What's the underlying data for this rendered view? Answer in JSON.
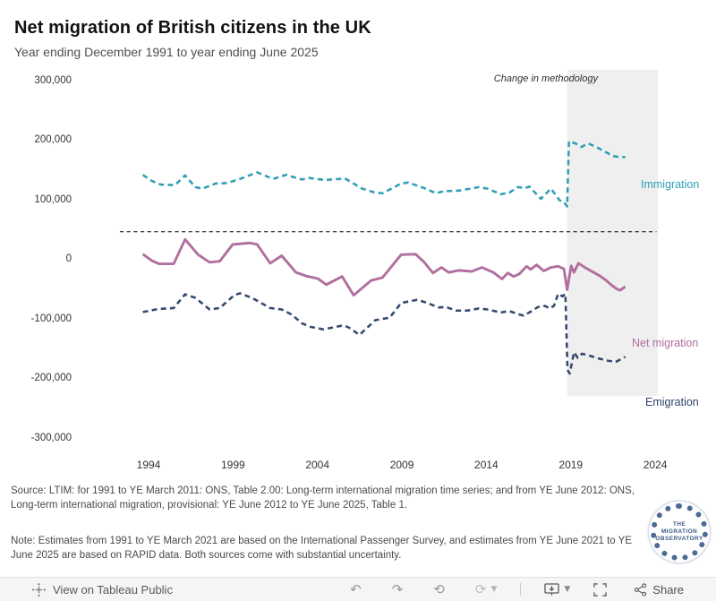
{
  "header": {
    "title": "Net migration of British citizens in the UK",
    "subtitle": "Year ending December 1991 to year ending June 2025"
  },
  "chart_data": {
    "type": "line",
    "title": "Net migration of British citizens in the UK",
    "subtitle": "Year ending December 1991 to year ending June 2025",
    "annotation": "Change in methodology",
    "grid": false,
    "x_range_years": [
      1991.96,
      2025.46
    ],
    "ylim": [
      -300000,
      300000
    ],
    "y_ticks": [
      300000,
      200000,
      100000,
      0,
      -100000,
      -200000,
      -300000
    ],
    "y_tick_labels": [
      "300,000",
      "200,000",
      "100,000",
      "0",
      "-100,000",
      "-200,000",
      "-300,000"
    ],
    "x_ticks": [
      1994,
      1999,
      2004,
      2009,
      2014,
      2019,
      2024
    ],
    "methodology_change_start_year": 2021.4,
    "shaded_region_color": "#efefef",
    "zero_line": {
      "value": 0,
      "style": "dashed",
      "color": "#000000"
    },
    "series": [
      {
        "name": "Immigration",
        "color": "#2E9FB7",
        "style": "dashed",
        "points": [
          [
            1991.96,
            112000
          ],
          [
            1992.6,
            100000
          ],
          [
            1993.2,
            93000
          ],
          [
            1994.2,
            92000
          ],
          [
            1994.9,
            111000
          ],
          [
            1995.6,
            88000
          ],
          [
            1996.1,
            85000
          ],
          [
            1997.0,
            95000
          ],
          [
            1997.8,
            96000
          ],
          [
            1998.6,
            103000
          ],
          [
            1999.9,
            117000
          ],
          [
            2001.0,
            104000
          ],
          [
            2001.9,
            112000
          ],
          [
            2003.0,
            103000
          ],
          [
            2003.5,
            106000
          ],
          [
            2004.6,
            102000
          ],
          [
            2006.0,
            105000
          ],
          [
            2007.2,
            85000
          ],
          [
            2008.1,
            77000
          ],
          [
            2008.6,
            76000
          ],
          [
            2009.9,
            95000
          ],
          [
            2010.4,
            97000
          ],
          [
            2011.6,
            85000
          ],
          [
            2012.3,
            76000
          ],
          [
            2012.9,
            80000
          ],
          [
            2013.9,
            81000
          ],
          [
            2015.3,
            88000
          ],
          [
            2015.9,
            85000
          ],
          [
            2016.8,
            74000
          ],
          [
            2017.4,
            77000
          ],
          [
            2018.0,
            88000
          ],
          [
            2018.5,
            86000
          ],
          [
            2018.8,
            89000
          ],
          [
            2019.6,
            65000
          ],
          [
            2020.3,
            85000
          ],
          [
            2020.9,
            62000
          ],
          [
            2021.2,
            59000
          ],
          [
            2021.42,
            50000
          ],
          [
            2021.55,
            178000
          ],
          [
            2022.0,
            174000
          ],
          [
            2022.4,
            167000
          ],
          [
            2022.9,
            174000
          ],
          [
            2023.5,
            166000
          ],
          [
            2024.1,
            157000
          ],
          [
            2024.6,
            149000
          ],
          [
            2025.1,
            147000
          ],
          [
            2025.46,
            147000
          ]
        ]
      },
      {
        "name": "Net migration",
        "color": "#B06F9E",
        "style": "solid",
        "points": [
          [
            1991.96,
            -44000
          ],
          [
            1992.6,
            -57000
          ],
          [
            1993.1,
            -63000
          ],
          [
            1994.1,
            -63000
          ],
          [
            1994.9,
            -15000
          ],
          [
            1995.8,
            -45000
          ],
          [
            1996.6,
            -60000
          ],
          [
            1997.3,
            -58000
          ],
          [
            1998.2,
            -25000
          ],
          [
            1999.4,
            -22000
          ],
          [
            1999.9,
            -25000
          ],
          [
            2000.8,
            -62000
          ],
          [
            2001.6,
            -47000
          ],
          [
            2002.6,
            -80000
          ],
          [
            2003.3,
            -87000
          ],
          [
            2004.1,
            -92000
          ],
          [
            2004.7,
            -104000
          ],
          [
            2005.8,
            -88000
          ],
          [
            2006.6,
            -125000
          ],
          [
            2007.8,
            -96000
          ],
          [
            2008.6,
            -90000
          ],
          [
            2009.9,
            -45000
          ],
          [
            2010.9,
            -44000
          ],
          [
            2011.5,
            -60000
          ],
          [
            2012.1,
            -81000
          ],
          [
            2012.7,
            -70000
          ],
          [
            2013.2,
            -80000
          ],
          [
            2013.9,
            -76000
          ],
          [
            2014.8,
            -78000
          ],
          [
            2015.5,
            -70000
          ],
          [
            2016.3,
            -80000
          ],
          [
            2016.9,
            -93000
          ],
          [
            2017.3,
            -81000
          ],
          [
            2017.7,
            -88000
          ],
          [
            2018.1,
            -83000
          ],
          [
            2018.6,
            -68000
          ],
          [
            2018.9,
            -74000
          ],
          [
            2019.3,
            -65000
          ],
          [
            2019.8,
            -77000
          ],
          [
            2020.3,
            -70000
          ],
          [
            2020.8,
            -68000
          ],
          [
            2021.2,
            -73000
          ],
          [
            2021.42,
            -114000
          ],
          [
            2021.7,
            -67000
          ],
          [
            2021.9,
            -80000
          ],
          [
            2022.2,
            -62000
          ],
          [
            2022.7,
            -71000
          ],
          [
            2023.2,
            -79000
          ],
          [
            2023.7,
            -87000
          ],
          [
            2024.1,
            -95000
          ],
          [
            2024.5,
            -105000
          ],
          [
            2024.9,
            -113000
          ],
          [
            2025.1,
            -115000
          ],
          [
            2025.46,
            -108000
          ]
        ]
      },
      {
        "name": "Emigration",
        "color": "#35496F",
        "style": "dashed",
        "points": [
          [
            1991.96,
            -158000
          ],
          [
            1993.0,
            -152000
          ],
          [
            1994.1,
            -150000
          ],
          [
            1994.9,
            -123000
          ],
          [
            1995.6,
            -130000
          ],
          [
            1996.6,
            -153000
          ],
          [
            1997.3,
            -150000
          ],
          [
            1998.3,
            -125000
          ],
          [
            1998.7,
            -121000
          ],
          [
            1999.6,
            -131000
          ],
          [
            2000.8,
            -150000
          ],
          [
            2001.6,
            -153000
          ],
          [
            2002.3,
            -163000
          ],
          [
            2003.0,
            -180000
          ],
          [
            2003.6,
            -187000
          ],
          [
            2004.5,
            -192000
          ],
          [
            2005.9,
            -184000
          ],
          [
            2006.3,
            -189000
          ],
          [
            2007.0,
            -203000
          ],
          [
            2008.1,
            -174000
          ],
          [
            2008.7,
            -171000
          ],
          [
            2009.1,
            -169000
          ],
          [
            2009.9,
            -140000
          ],
          [
            2011.0,
            -134000
          ],
          [
            2011.6,
            -139000
          ],
          [
            2012.5,
            -149000
          ],
          [
            2013.0,
            -148000
          ],
          [
            2013.7,
            -155000
          ],
          [
            2014.5,
            -155000
          ],
          [
            2015.3,
            -151000
          ],
          [
            2015.9,
            -153000
          ],
          [
            2016.8,
            -159000
          ],
          [
            2017.4,
            -156000
          ],
          [
            2018.0,
            -162000
          ],
          [
            2018.4,
            -165000
          ],
          [
            2018.9,
            -157000
          ],
          [
            2019.4,
            -148000
          ],
          [
            2019.9,
            -146000
          ],
          [
            2020.2,
            -151000
          ],
          [
            2020.5,
            -146000
          ],
          [
            2020.8,
            -122000
          ],
          [
            2021.1,
            -127000
          ],
          [
            2021.3,
            -122000
          ],
          [
            2021.45,
            -272000
          ],
          [
            2021.6,
            -279000
          ],
          [
            2021.9,
            -237000
          ],
          [
            2022.15,
            -248000
          ],
          [
            2022.45,
            -240000
          ],
          [
            2023.0,
            -244000
          ],
          [
            2023.7,
            -250000
          ],
          [
            2024.3,
            -254000
          ],
          [
            2024.8,
            -256000
          ],
          [
            2025.2,
            -250000
          ],
          [
            2025.46,
            -246000
          ]
        ]
      }
    ]
  },
  "footer": {
    "source": "Source: LTIM: for 1991 to YE March 2011: ONS, Table 2.00: Long-term international migration time series; and from YE June 2012: ONS, Long-term international migration, provisional: YE June 2012 to YE June 2025, Table 1.",
    "note": "Note: Estimates from 1991 to YE March 2021 are based on the International Passenger Survey, and estimates from YE June 2021 to YE June 2025 are based on RAPID data. Both sources come with substantial uncertainty.",
    "logo_line1": "THE",
    "logo_line2": "MIGRATION",
    "logo_line3": "OBSERVATORY"
  },
  "toolbar": {
    "view_label": "View on Tableau Public",
    "share_label": "Share",
    "icons": {
      "undo": "↶",
      "redo": "↷",
      "revert": "⟲",
      "refresh": "⟳",
      "caret": "▼"
    }
  }
}
